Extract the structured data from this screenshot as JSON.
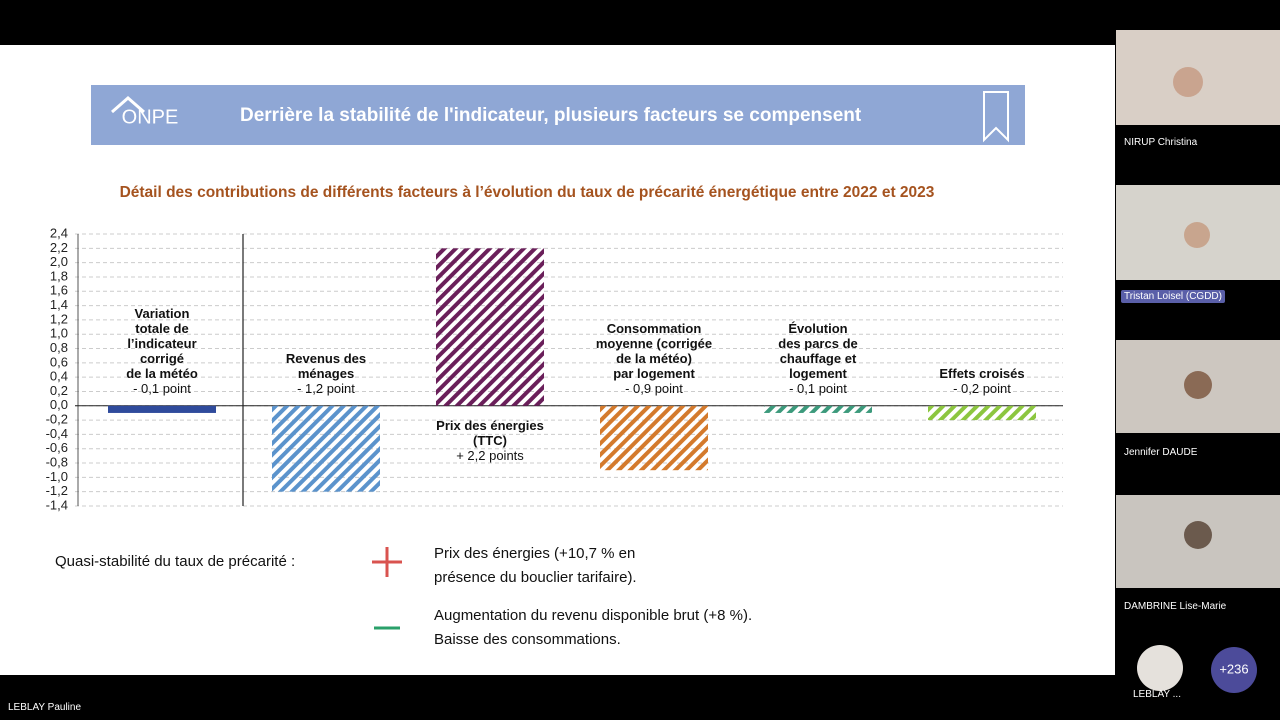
{
  "slide": {
    "logo": "ONPE",
    "title": "Derrière la stabilité de l'indicateur, plusieurs facteurs se compensent",
    "summary": {
      "label": "Quasi-stabilité du taux de précarité :",
      "items": [
        {
          "text": "Prix des énergies  (+10,7 % en\nprésence  du bouclier tarifaire)."
        },
        {
          "text": "Augmentation du revenu disponible brut (+8 %).\nBaisse des consommations."
        }
      ]
    }
  },
  "chart_data": {
    "type": "bar",
    "title": "Détail des contributions de différents facteurs à l’évolution du taux de précarité énergétique entre 2022 et 2023",
    "categories": [
      "Variation\ntotale de\nl’indicateur\ncorrigé\nde la météo",
      "Revenus des\nménages",
      "Prix des énergies\n(TTC)",
      "Consommation\nmoyenne (corrigée\nde la météo)\npar logement",
      "Évolution\ndes parcs de\nchauffage et\nlogement",
      "Effets croisés"
    ],
    "values": [
      -0.1,
      -1.2,
      2.2,
      -0.9,
      -0.1,
      -0.2
    ],
    "value_labels": [
      "- 0,1 point",
      "- 1,2 point",
      "+ 2,2 points",
      "- 0,9 point",
      "- 0,1 point",
      "- 0,2 point"
    ],
    "colors": [
      "#2f4b9c",
      "#5b93cc",
      "#6a1f5a",
      "#d47a2c",
      "#3c9a7c",
      "#8cc63f"
    ],
    "hatched": [
      false,
      true,
      true,
      true,
      true,
      true
    ],
    "ylim": [
      -1.4,
      2.4
    ],
    "yticks": [
      {
        "value": 2.4,
        "label": "2,4"
      },
      {
        "value": 2.2,
        "label": "2,2"
      },
      {
        "value": 2.0,
        "label": "2,0"
      },
      {
        "value": 1.8,
        "label": "1,8"
      },
      {
        "value": 1.6,
        "label": "1,6"
      },
      {
        "value": 1.4,
        "label": "1,4"
      },
      {
        "value": 1.2,
        "label": "1,2"
      },
      {
        "value": 1.0,
        "label": "1,0"
      },
      {
        "value": 0.8,
        "label": "0,8"
      },
      {
        "value": 0.6,
        "label": "0,6"
      },
      {
        "value": 0.4,
        "label": "0,4"
      },
      {
        "value": 0.2,
        "label": "0,2"
      },
      {
        "value": 0,
        "label": "0,0"
      },
      {
        "value": -0.2,
        "label": "-0,2"
      },
      {
        "value": -0.4,
        "label": "-0,4"
      },
      {
        "value": -0.6,
        "label": "-0,6"
      },
      {
        "value": -0.8,
        "label": "-0,8"
      },
      {
        "value": -1.0,
        "label": "-1,0"
      },
      {
        "value": -1.2,
        "label": "-1,2"
      },
      {
        "value": -1.4,
        "label": "-1,4"
      }
    ],
    "grid": true
  },
  "participants": [
    {
      "name": "NIRUP Christina"
    },
    {
      "name": "Tristan Loisel (CGDD)"
    },
    {
      "name": "Jennifer DAUDE"
    },
    {
      "name": "DAMBRINE Lise-Marie"
    }
  ],
  "self_view": {
    "name": "LEBLAY ..."
  },
  "more_count": "+236",
  "speaker": "LEBLAY Pauline"
}
